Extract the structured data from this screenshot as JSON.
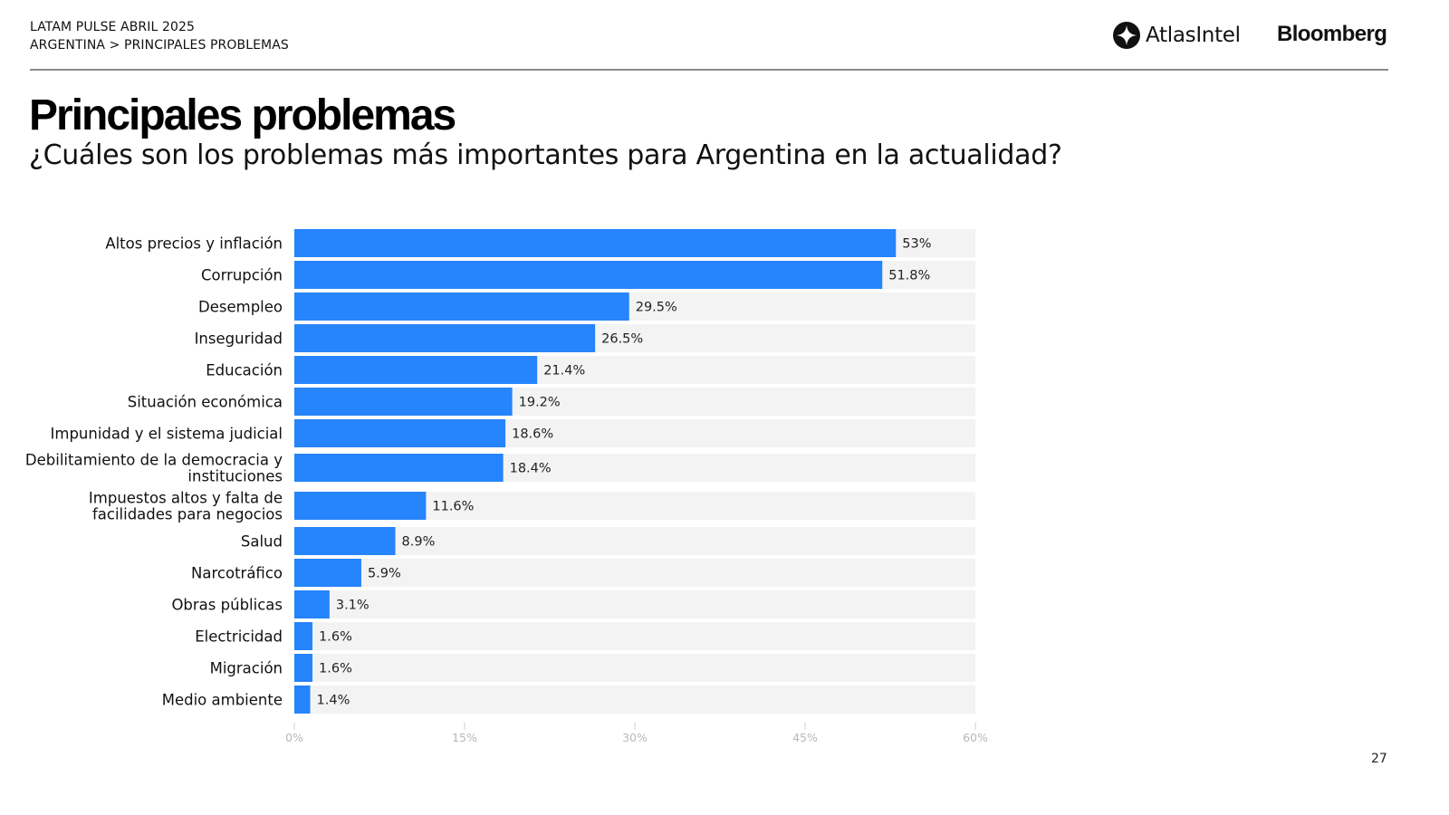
{
  "header": {
    "line1": "LATAM PULSE ABRIL 2025",
    "line2": "ARGENTINA > PRINCIPALES PROBLEMAS",
    "logos": {
      "atlas": "AtlasIntel",
      "atlas_icon": "atlasintel-logo-icon",
      "bloomberg": "Bloomberg"
    }
  },
  "title": "Principales problemas",
  "subtitle": "¿Cuáles son los problemas más importantes para Argentina en la actualidad?",
  "page_number": "27",
  "colors": {
    "bar": "#2684fc",
    "track": "#f3f3f3",
    "axis_text": "#b8b8b8"
  },
  "chart_data": {
    "type": "bar",
    "orientation": "horizontal",
    "title": "Principales problemas",
    "xlabel": "",
    "ylabel": "",
    "xlim": [
      0,
      60
    ],
    "x_ticks": [
      0,
      15,
      30,
      45,
      60
    ],
    "x_tick_labels": [
      "0%",
      "15%",
      "30%",
      "45%",
      "60%"
    ],
    "grid": false,
    "legend": "none",
    "categories": [
      [
        "Altos precios y inflación"
      ],
      [
        "Corrupción"
      ],
      [
        "Desempleo"
      ],
      [
        "Inseguridad"
      ],
      [
        "Educación"
      ],
      [
        "Situación económica"
      ],
      [
        "Impunidad y el sistema judicial"
      ],
      [
        "Debilitamiento de la democracia y",
        "instituciones"
      ],
      [
        "Impuestos altos y falta de",
        "facilidades para negocios"
      ],
      [
        "Salud"
      ],
      [
        "Narcotráfico"
      ],
      [
        "Obras públicas"
      ],
      [
        "Electricidad"
      ],
      [
        "Migración"
      ],
      [
        "Medio ambiente"
      ]
    ],
    "values": [
      53,
      51.8,
      29.5,
      26.5,
      21.4,
      19.2,
      18.6,
      18.4,
      11.6,
      8.9,
      5.9,
      3.1,
      1.6,
      1.6,
      1.4
    ],
    "value_labels": [
      "53%",
      "51.8%",
      "29.5%",
      "26.5%",
      "21.4%",
      "19.2%",
      "18.6%",
      "18.4%",
      "11.6%",
      "8.9%",
      "5.9%",
      "3.1%",
      "1.6%",
      "1.6%",
      "1.4%"
    ]
  }
}
